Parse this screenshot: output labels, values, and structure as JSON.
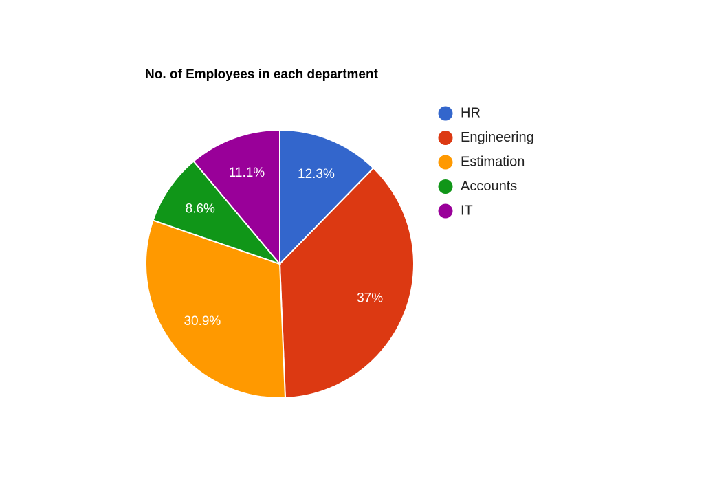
{
  "chart_data": {
    "type": "pie",
    "title": "No. of Employees in each department",
    "categories": [
      "HR",
      "Engineering",
      "Estimation",
      "Accounts",
      "IT"
    ],
    "values": [
      12.3,
      37,
      30.9,
      8.6,
      11.1
    ],
    "value_labels": [
      "12.3%",
      "37%",
      "30.9%",
      "8.6%",
      "11.1%"
    ],
    "colors": [
      "#3366cc",
      "#dc3912",
      "#ff9900",
      "#109618",
      "#990099"
    ],
    "legend_position": "right",
    "start_angle": "12 o'clock, clockwise"
  }
}
